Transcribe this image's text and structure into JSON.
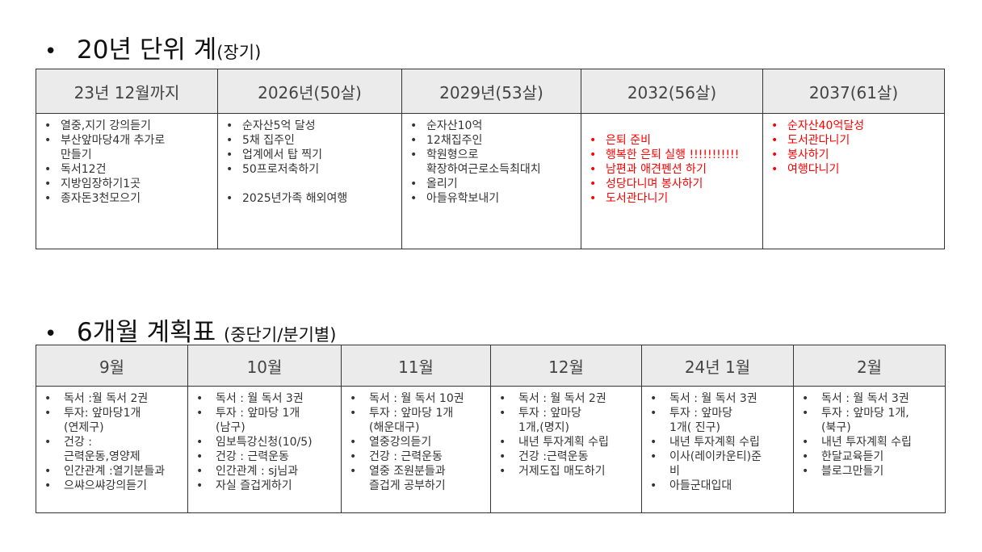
{
  "section1": {
    "title": "20년 단위 계",
    "subtitle": "(장기)",
    "columns": [
      {
        "header": "23년 12월까지",
        "items": [
          "열중,지기 강의듣기",
          "부산앞마당4개 추가로\n만들기",
          "독서12건",
          "지방임장하기1곳",
          "종자돈3천모으기"
        ]
      },
      {
        "header": "2026년(50살)",
        "items": [
          "순자산5억 달성",
          "5채 집주인",
          "업계에서 탑 찍기",
          "50프로저축하기",
          "",
          "2025년가족 해외여행"
        ]
      },
      {
        "header": "2029년(53살)",
        "items": [
          "순자산10억",
          "12채집주인",
          "학원형으로\n확장하여근로소득최대치",
          "올리기",
          "아들유학보내기"
        ]
      },
      {
        "header": "2032(56살)",
        "items": [
          "",
          "은퇴 준비",
          "행복한 은퇴 실행 !!!!!!!!!!!",
          "남편과  애견펜션 하기",
          "성당다니며 봉사하기",
          "도서관다니기"
        ],
        "color": "#ff0000"
      },
      {
        "header": "2037(61살)",
        "items": [
          "순자산40억달성",
          "도서관다니기",
          "봉사하기",
          "여행다니기"
        ],
        "color": "#ff0000"
      }
    ]
  },
  "section2": {
    "title": "6개월 계획표",
    "subtitle": "(중단기/분기별)",
    "columns": [
      {
        "header": "9월",
        "items": [
          "독서 :월 독서 2권",
          "투자: 앞마당1개\n(연제구)",
          "건강 :\n근력운동,영양제",
          "인간관계 :열기분들과",
          "으쌰으쌰강의듣기"
        ]
      },
      {
        "header": "10월",
        "items": [
          "독서 : 월 독서 3권",
          "투자 : 앞마당 1개\n(남구)",
          "임보특강신청(10/5)",
          "건강 : 근력운동",
          "인간관계 : sj님과",
          "자실 즐겁게하기"
        ]
      },
      {
        "header": "11월",
        "items": [
          "독서 : 월 독서 10권",
          "투자 : 앞마당 1개\n(해운대구)",
          "열중강의듣기",
          "건강 : 근력운동",
          "열중 조원분들과\n즐겁게 공부하기"
        ]
      },
      {
        "header": "12월",
        "items": [
          "독서 : 월 독서 2권",
          "투자 : 앞마당\n1개,(명지)",
          "내년 투자계획 수립",
          "건강 :근력운동",
          "거제도집 매도하기"
        ]
      },
      {
        "header": "24년 1월",
        "items": [
          "독서 : 월 독서 3권",
          "투자 : 앞마당\n1개( 진구)",
          "내년 투자계획 수립",
          "이사(레이카운티)준\n비",
          "아들군대입대"
        ]
      },
      {
        "header": "2월",
        "items": [
          "독서 : 월 독서 3권",
          "투자 : 앞마당 1개,\n(북구)",
          "내년 투자계획 수립",
          "한달교육듣기",
          "블로그만들기"
        ]
      }
    ]
  }
}
